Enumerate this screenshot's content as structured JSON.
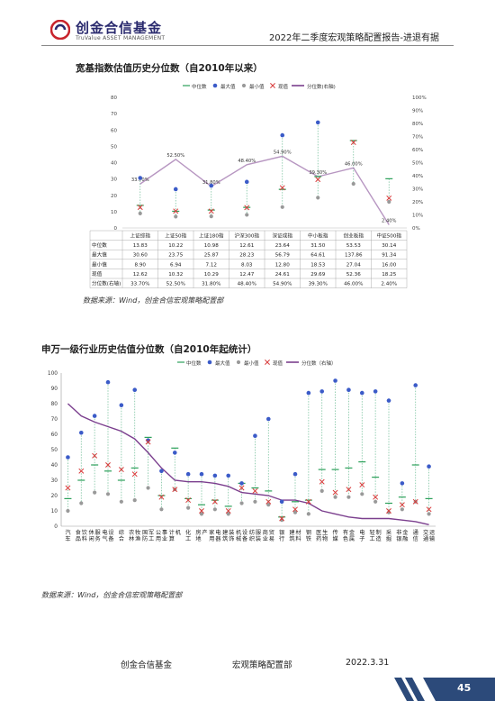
{
  "header": {
    "logo_cn": "创金合信基金",
    "logo_en": "TruValue ASSET MANAGEMENT",
    "doc_title": "2022年二季度宏观策略配置报告-进退有据"
  },
  "section1": {
    "title": "宽基指数估值历史分位数（自2010年以来）",
    "source": "数据来源：Wind，创金合信宏观策略配置部"
  },
  "section2": {
    "title": "申万一级行业历史估值分位数（自2010年起统计）",
    "source": "数据来源：Wind，创金合信宏观策略配置部"
  },
  "footer": {
    "company": "创金合信基金",
    "dept": "宏观策略配置部",
    "date": "2022.3.31",
    "page": "45"
  },
  "colors": {
    "median": "#2ca05a",
    "max": "#3b5bc8",
    "min": "#999999",
    "current": "#d83a3a",
    "percentile": "#7b3f8e"
  },
  "chart_data": [
    {
      "type": "line",
      "legend": [
        "中位数",
        "最大值",
        "最小值",
        "现值",
        "分位数(右轴)"
      ],
      "legend_position": "top",
      "categories": [
        "上证综指",
        "上证50指",
        "上证180指",
        "沪深300指",
        "深证成指",
        "中小板指",
        "创业板指",
        "中证500指"
      ],
      "series": [
        {
          "name": "中位数",
          "values": [
            13.83,
            10.22,
            10.98,
            12.61,
            23.64,
            31.5,
            53.53,
            30.14
          ]
        },
        {
          "name": "最大值",
          "values": [
            30.6,
            23.75,
            25.87,
            28.23,
            56.79,
            64.61,
            137.86,
            91.34
          ]
        },
        {
          "name": "最小值",
          "values": [
            8.9,
            6.94,
            7.12,
            8.03,
            12.8,
            18.53,
            27.04,
            16.0
          ]
        },
        {
          "name": "现值",
          "values": [
            12.62,
            10.32,
            10.29,
            12.47,
            24.61,
            29.69,
            52.36,
            18.25
          ]
        },
        {
          "name": "分位数(右轴)",
          "axis": "right",
          "values": [
            33.7,
            52.5,
            31.8,
            48.4,
            54.9,
            39.3,
            46.0,
            2.4
          ],
          "labels": [
            "33.70%",
            "52.50%",
            "31.80%",
            "48.40%",
            "54.90%",
            "39.30%",
            "46.00%",
            "2.40%"
          ]
        }
      ],
      "ylim": [
        0,
        80
      ],
      "yticks": [
        "0",
        "10",
        "20",
        "30",
        "40",
        "50",
        "60",
        "70",
        "80"
      ],
      "y2lim": [
        0,
        100
      ],
      "y2ticks": [
        "0%",
        "10%",
        "20%",
        "30%",
        "40%",
        "50%",
        "60%",
        "70%",
        "80%",
        "90%",
        "100%"
      ],
      "table": {
        "headers": [
          "",
          "上证综指",
          "上证50指",
          "上证180指",
          "沪深300指",
          "深证成指",
          "中小板指",
          "创业板指",
          "中证500指"
        ],
        "rows": [
          [
            "中位数",
            "13.83",
            "10.22",
            "10.98",
            "12.61",
            "23.64",
            "31.50",
            "53.53",
            "30.14"
          ],
          [
            "最大值",
            "30.60",
            "23.75",
            "25.87",
            "28.23",
            "56.79",
            "64.61",
            "137.86",
            "91.34"
          ],
          [
            "最小值",
            "8.90",
            "6.94",
            "7.12",
            "8.03",
            "12.80",
            "18.53",
            "27.04",
            "16.00"
          ],
          [
            "现值",
            "12.62",
            "10.32",
            "10.29",
            "12.47",
            "24.61",
            "29.69",
            "52.36",
            "18.25"
          ],
          [
            "分位数(右轴)",
            "33.70%",
            "52.50%",
            "31.80%",
            "48.40%",
            "54.90%",
            "39.30%",
            "46.00%",
            "2.40%"
          ]
        ]
      }
    },
    {
      "type": "line",
      "legend": [
        "中位数",
        "最大值",
        "最小值",
        "现值",
        "分位数（右轴）"
      ],
      "legend_position": "top",
      "categories": [
        "汽车",
        "食品饮料",
        "休闲服务",
        "电气设备",
        "综合",
        "农林牧渔",
        "国防军工",
        "公用事业",
        "计算机",
        "化工",
        "房地产",
        "家用电器",
        "建筑装饰",
        "机械设备",
        "纺织服装",
        "商业贸易",
        "银行",
        "建筑材料",
        "钢铁",
        "医药生物",
        "传媒",
        "有色金属",
        "电子",
        "轻工制造",
        "采掘",
        "非银金融",
        "通信",
        "交通运输"
      ],
      "series": [
        {
          "name": "中位数",
          "values": [
            18,
            30,
            40,
            36,
            30,
            38,
            58,
            20,
            51,
            18,
            14,
            17,
            13,
            28,
            25,
            23,
            6,
            16,
            17,
            37,
            37,
            38,
            42,
            32,
            15,
            19,
            40,
            18
          ]
        },
        {
          "name": "最大值",
          "values": [
            45,
            61,
            72,
            94,
            79,
            89,
            56,
            36,
            48,
            34,
            34,
            33,
            33,
            28,
            59,
            70,
            16,
            34,
            87,
            88,
            95,
            89,
            87,
            88,
            82,
            28,
            92,
            39
          ]
        },
        {
          "name": "最小值",
          "values": [
            10,
            15,
            22,
            21,
            16,
            17,
            25,
            11,
            24,
            12,
            8,
            11,
            8,
            15,
            16,
            14,
            4,
            9,
            8,
            23,
            19,
            19,
            21,
            16,
            9,
            11,
            16,
            8
          ]
        },
        {
          "name": "现值",
          "values": [
            25,
            36,
            46,
            40,
            37,
            34,
            55,
            19,
            24,
            17,
            10,
            16,
            10,
            25,
            23,
            16,
            5,
            11,
            16,
            29,
            22,
            24,
            27,
            19,
            10,
            14,
            16,
            11
          ]
        },
        {
          "name": "分位数（右轴）",
          "axis": "right",
          "values": [
            80,
            72,
            68,
            65,
            62,
            57,
            48,
            38,
            30,
            29,
            29,
            28,
            26,
            22,
            21,
            20,
            17,
            17,
            15,
            10,
            8,
            6,
            5,
            5,
            5,
            4,
            3,
            1
          ]
        }
      ],
      "ylim": [
        0,
        100
      ],
      "yticks": [
        "0",
        "10",
        "20",
        "30",
        "40",
        "50",
        "60",
        "70",
        "80",
        "90",
        "100"
      ],
      "y2lim": [
        0,
        100
      ]
    }
  ]
}
